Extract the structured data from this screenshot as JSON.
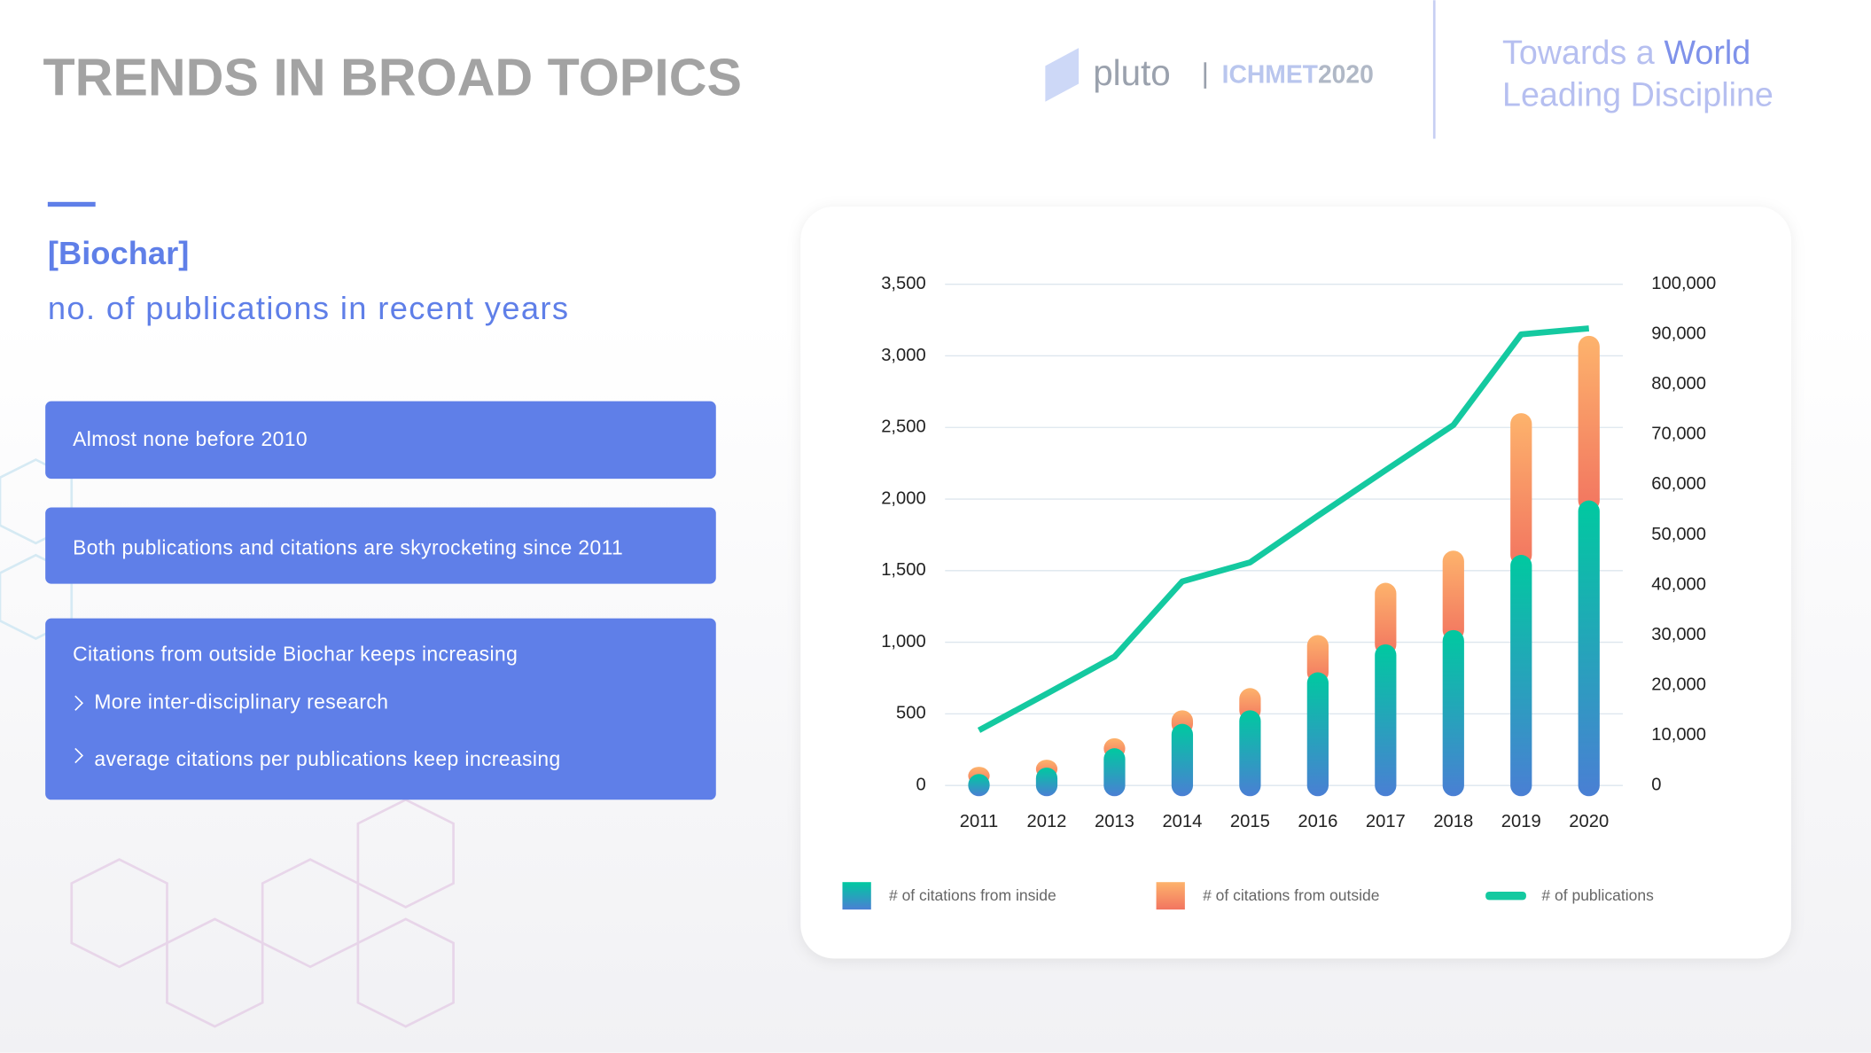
{
  "header": {
    "title": "TRENDS IN  BROAD TOPICS",
    "logo": "pluto",
    "event": "ICHMET",
    "event_year": "2020",
    "tagline_start": "Towards a",
    "tagline_highlight": "World",
    "tagline_line2": "Leading Discipline"
  },
  "section": {
    "title": "[Biochar]",
    "subtitle": "no. of publications in recent years"
  },
  "boxes": [
    {
      "text": "Almost none before 2010"
    },
    {
      "text": "Both publications and citations are skyrocketing since 2011"
    },
    {
      "text": "Citations from outside Biochar keeps increasing",
      "items": [
        "More inter-disciplinary research",
        "average citations per publications keep increasing"
      ]
    }
  ],
  "chart_data": {
    "type": "bar_line",
    "categories": [
      "2011",
      "2012",
      "2013",
      "2014",
      "2015",
      "2016",
      "2017",
      "2018",
      "2019",
      "2020"
    ],
    "series": [
      {
        "name": "# of citations from inside",
        "type": "bar",
        "colors": [
          "#4a7fd4",
          "#00c9a0"
        ],
        "values": [
          80,
          125,
          260,
          430,
          525,
          790,
          985,
          1085,
          1610,
          1990
        ]
      },
      {
        "name": "# of citations from outside",
        "type": "bar",
        "colors": [
          "#f27560",
          "#fdb36c"
        ],
        "values": [
          50,
          55,
          70,
          95,
          155,
          260,
          430,
          555,
          990,
          1150
        ]
      },
      {
        "name": "# of publications",
        "type": "line",
        "axis": "y2",
        "color": "#14c9a0",
        "values": [
          11000,
          18300,
          25700,
          40700,
          44500,
          53800,
          62900,
          71900,
          90000,
          91200
        ]
      }
    ],
    "ylim": [
      0,
      3500
    ],
    "yticks": [
      0,
      500,
      {
        "value": 1000,
        "label": "1,000"
      },
      {
        "value": 1500,
        "label": "1,500"
      },
      {
        "value": 2000,
        "label": "2,000"
      },
      {
        "value": 2500,
        "label": "2,500"
      },
      {
        "value": 3000,
        "label": "3,000"
      },
      {
        "value": 3500,
        "label": "3,500"
      }
    ],
    "y2lim": [
      0,
      100000
    ],
    "y2ticks": [
      0,
      {
        "value": 10000,
        "label": "10,000"
      },
      {
        "value": 20000,
        "label": "20,000"
      },
      {
        "value": 30000,
        "label": "30,000"
      },
      {
        "value": 40000,
        "label": "40,000"
      },
      {
        "value": 50000,
        "label": "50,000"
      },
      {
        "value": 60000,
        "label": "60,000"
      },
      {
        "value": 70000,
        "label": "70,000"
      },
      {
        "value": 80000,
        "label": "80,000"
      },
      {
        "value": 90000,
        "label": "90,000"
      },
      {
        "value": 100000,
        "label": "100,000"
      }
    ],
    "grid": true,
    "legend": "bottom"
  }
}
